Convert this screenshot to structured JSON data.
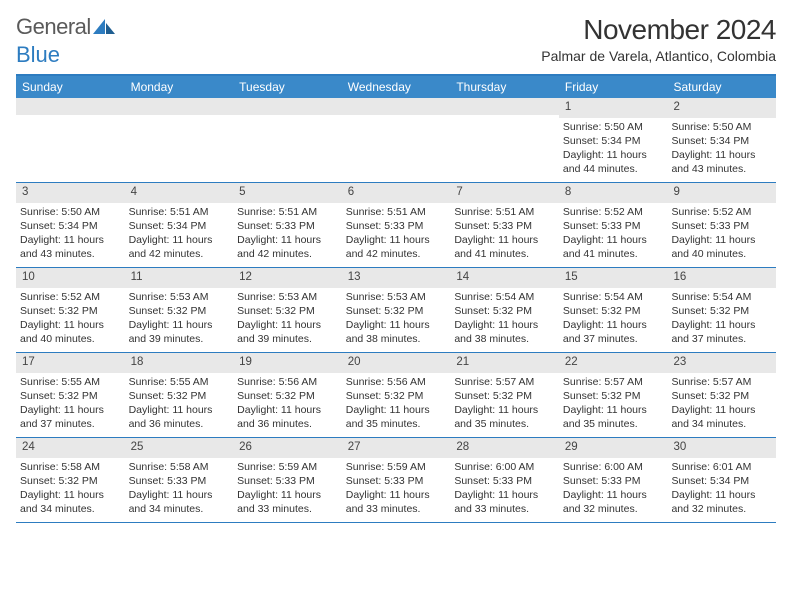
{
  "logo": {
    "text1": "General",
    "text2": "Blue"
  },
  "header": {
    "title": "November 2024",
    "subtitle": "Palmar de Varela, Atlantico, Colombia"
  },
  "colors": {
    "accent": "#2d7cc0",
    "header_bg": "#3a89c9",
    "band_bg": "#e8e8e8",
    "text": "#333333",
    "logo_gray": "#5a5a5a"
  },
  "dow": [
    "Sunday",
    "Monday",
    "Tuesday",
    "Wednesday",
    "Thursday",
    "Friday",
    "Saturday"
  ],
  "calendar": {
    "first_weekday_index": 5,
    "num_days": 30
  },
  "days": {
    "1": {
      "sunrise": "5:50 AM",
      "sunset": "5:34 PM",
      "dl_h": 11,
      "dl_m": 44
    },
    "2": {
      "sunrise": "5:50 AM",
      "sunset": "5:34 PM",
      "dl_h": 11,
      "dl_m": 43
    },
    "3": {
      "sunrise": "5:50 AM",
      "sunset": "5:34 PM",
      "dl_h": 11,
      "dl_m": 43
    },
    "4": {
      "sunrise": "5:51 AM",
      "sunset": "5:34 PM",
      "dl_h": 11,
      "dl_m": 42
    },
    "5": {
      "sunrise": "5:51 AM",
      "sunset": "5:33 PM",
      "dl_h": 11,
      "dl_m": 42
    },
    "6": {
      "sunrise": "5:51 AM",
      "sunset": "5:33 PM",
      "dl_h": 11,
      "dl_m": 42
    },
    "7": {
      "sunrise": "5:51 AM",
      "sunset": "5:33 PM",
      "dl_h": 11,
      "dl_m": 41
    },
    "8": {
      "sunrise": "5:52 AM",
      "sunset": "5:33 PM",
      "dl_h": 11,
      "dl_m": 41
    },
    "9": {
      "sunrise": "5:52 AM",
      "sunset": "5:33 PM",
      "dl_h": 11,
      "dl_m": 40
    },
    "10": {
      "sunrise": "5:52 AM",
      "sunset": "5:32 PM",
      "dl_h": 11,
      "dl_m": 40
    },
    "11": {
      "sunrise": "5:53 AM",
      "sunset": "5:32 PM",
      "dl_h": 11,
      "dl_m": 39
    },
    "12": {
      "sunrise": "5:53 AM",
      "sunset": "5:32 PM",
      "dl_h": 11,
      "dl_m": 39
    },
    "13": {
      "sunrise": "5:53 AM",
      "sunset": "5:32 PM",
      "dl_h": 11,
      "dl_m": 38
    },
    "14": {
      "sunrise": "5:54 AM",
      "sunset": "5:32 PM",
      "dl_h": 11,
      "dl_m": 38
    },
    "15": {
      "sunrise": "5:54 AM",
      "sunset": "5:32 PM",
      "dl_h": 11,
      "dl_m": 37
    },
    "16": {
      "sunrise": "5:54 AM",
      "sunset": "5:32 PM",
      "dl_h": 11,
      "dl_m": 37
    },
    "17": {
      "sunrise": "5:55 AM",
      "sunset": "5:32 PM",
      "dl_h": 11,
      "dl_m": 37
    },
    "18": {
      "sunrise": "5:55 AM",
      "sunset": "5:32 PM",
      "dl_h": 11,
      "dl_m": 36
    },
    "19": {
      "sunrise": "5:56 AM",
      "sunset": "5:32 PM",
      "dl_h": 11,
      "dl_m": 36
    },
    "20": {
      "sunrise": "5:56 AM",
      "sunset": "5:32 PM",
      "dl_h": 11,
      "dl_m": 35
    },
    "21": {
      "sunrise": "5:57 AM",
      "sunset": "5:32 PM",
      "dl_h": 11,
      "dl_m": 35
    },
    "22": {
      "sunrise": "5:57 AM",
      "sunset": "5:32 PM",
      "dl_h": 11,
      "dl_m": 35
    },
    "23": {
      "sunrise": "5:57 AM",
      "sunset": "5:32 PM",
      "dl_h": 11,
      "dl_m": 34
    },
    "24": {
      "sunrise": "5:58 AM",
      "sunset": "5:32 PM",
      "dl_h": 11,
      "dl_m": 34
    },
    "25": {
      "sunrise": "5:58 AM",
      "sunset": "5:33 PM",
      "dl_h": 11,
      "dl_m": 34
    },
    "26": {
      "sunrise": "5:59 AM",
      "sunset": "5:33 PM",
      "dl_h": 11,
      "dl_m": 33
    },
    "27": {
      "sunrise": "5:59 AM",
      "sunset": "5:33 PM",
      "dl_h": 11,
      "dl_m": 33
    },
    "28": {
      "sunrise": "6:00 AM",
      "sunset": "5:33 PM",
      "dl_h": 11,
      "dl_m": 33
    },
    "29": {
      "sunrise": "6:00 AM",
      "sunset": "5:33 PM",
      "dl_h": 11,
      "dl_m": 32
    },
    "30": {
      "sunrise": "6:01 AM",
      "sunset": "5:34 PM",
      "dl_h": 11,
      "dl_m": 32
    }
  },
  "labels": {
    "sunrise": "Sunrise:",
    "sunset": "Sunset:",
    "daylight_prefix": "Daylight:",
    "hours_word": "hours",
    "and_word": "and",
    "minutes_word": "minutes."
  },
  "typography": {
    "title_fontsize": 28,
    "subtitle_fontsize": 14,
    "dow_fontsize": 12,
    "cell_fontsize": 10.5,
    "daynum_fontsize": 11.5,
    "logo_fontsize": 22
  }
}
